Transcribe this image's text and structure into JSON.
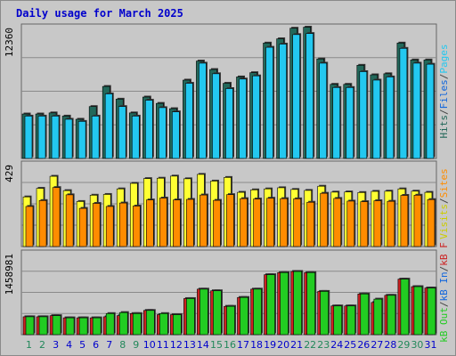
{
  "title": "Daily usage for March 2025",
  "colors": {
    "title": "#0000cc",
    "background": "#c8c8c8",
    "plot_bg": "#c8c8c8",
    "grid": "#8a8a8a",
    "hits": "#22685a",
    "files": "#23c8f0",
    "pages": "#23c8f0",
    "visits": "#ffff33",
    "sites": "#ff8c00",
    "kb_in": "#cc2222",
    "kb_out": "#22cc22",
    "weekday_label": "#0000cc",
    "weekend_label": "#22885a"
  },
  "right_labels": {
    "top": [
      {
        "text": "Hits",
        "color": "#22685a"
      },
      {
        "text": "/",
        "color": "#444444"
      },
      {
        "text": "Files",
        "color": "#1166dd"
      },
      {
        "text": "/",
        "color": "#444444"
      },
      {
        "text": "Pages",
        "color": "#23c8f0"
      }
    ],
    "middle": [
      {
        "text": "Visits",
        "color": "#cccc00"
      },
      {
        "text": "/",
        "color": "#444444"
      },
      {
        "text": "Sites",
        "color": "#ff8c00"
      }
    ],
    "bottom": [
      {
        "text": "kB Out",
        "color": "#22cc22"
      },
      {
        "text": "/",
        "color": "#444444"
      },
      {
        "text": "kB In",
        "color": "#1166dd"
      },
      {
        "text": "/",
        "color": "#444444"
      },
      {
        "text": "kB F",
        "color": "#cc2222"
      }
    ]
  },
  "chart_data": [
    {
      "type": "bar",
      "name": "hits-files-pages",
      "ymax": 12360,
      "ymax_label": "12360",
      "categories": [
        "1",
        "2",
        "3",
        "4",
        "5",
        "6",
        "7",
        "8",
        "9",
        "10",
        "11",
        "12",
        "13",
        "14",
        "15",
        "16",
        "17",
        "18",
        "19",
        "20",
        "21",
        "22",
        "23",
        "24",
        "25",
        "26",
        "27",
        "28",
        "29",
        "30",
        "31"
      ],
      "series": [
        {
          "name": "Hits",
          "values": [
            4200,
            4200,
            4300,
            4000,
            3700,
            4900,
            6800,
            5600,
            4300,
            5800,
            5200,
            4700,
            7400,
            9200,
            8400,
            7100,
            7700,
            8100,
            10900,
            11300,
            12300,
            12400,
            9400,
            7000,
            7000,
            8800,
            7900,
            8000,
            10900,
            9300,
            9300
          ]
        },
        {
          "name": "Files",
          "values": [
            4000,
            4000,
            4000,
            3700,
            3500,
            4000,
            6100,
            4900,
            4000,
            5500,
            4800,
            4400,
            7100,
            9000,
            8000,
            6600,
            7500,
            7800,
            10500,
            10800,
            11700,
            11800,
            9000,
            6700,
            6700,
            8200,
            7400,
            7700,
            10400,
            9000,
            8900
          ]
        },
        {
          "name": "Pages",
          "values": [
            0,
            0,
            0,
            0,
            0,
            0,
            0,
            0,
            0,
            0,
            0,
            0,
            0,
            0,
            0,
            0,
            0,
            0,
            0,
            0,
            0,
            0,
            0,
            0,
            0,
            0,
            0,
            0,
            0,
            0,
            0
          ]
        }
      ]
    },
    {
      "type": "bar",
      "name": "visits-sites",
      "ymax": 429,
      "ymax_label": "429",
      "categories": [
        "1",
        "2",
        "3",
        "4",
        "5",
        "6",
        "7",
        "8",
        "9",
        "10",
        "11",
        "12",
        "13",
        "14",
        "15",
        "16",
        "17",
        "18",
        "19",
        "20",
        "21",
        "22",
        "23",
        "24",
        "25",
        "26",
        "27",
        "28",
        "29",
        "30",
        "31"
      ],
      "series": [
        {
          "name": "Visits",
          "values": [
            260,
            305,
            368,
            293,
            236,
            269,
            273,
            302,
            331,
            356,
            358,
            369,
            355,
            378,
            343,
            362,
            284,
            297,
            302,
            308,
            299,
            294,
            316,
            285,
            286,
            283,
            289,
            290,
            302,
            290,
            284
          ]
        },
        {
          "name": "Sites",
          "values": [
            210,
            241,
            309,
            271,
            200,
            226,
            210,
            228,
            212,
            244,
            254,
            244,
            247,
            270,
            242,
            272,
            251,
            249,
            253,
            251,
            250,
            232,
            279,
            252,
            238,
            235,
            240,
            237,
            268,
            269,
            246
          ]
        }
      ]
    },
    {
      "type": "bar",
      "name": "kb-in-out",
      "ymax": 1458981,
      "ymax_label": "1458981",
      "categories": [
        "1",
        "2",
        "3",
        "4",
        "5",
        "6",
        "7",
        "8",
        "9",
        "10",
        "11",
        "12",
        "13",
        "14",
        "15",
        "16",
        "17",
        "18",
        "19",
        "20",
        "21",
        "22",
        "23",
        "24",
        "25",
        "26",
        "27",
        "28",
        "29",
        "30",
        "31"
      ],
      "series": [
        {
          "name": "kB F",
          "values": [
            322000,
            322000,
            342000,
            303000,
            303000,
            303000,
            322000,
            342000,
            380000,
            436000,
            360000,
            360000,
            650000,
            820000,
            790000,
            510000,
            670000,
            820000,
            1080000,
            1118000,
            1138000,
            1118000,
            779000,
            517000,
            517000,
            733000,
            580000,
            708000,
            1000000,
            865000,
            840000
          ]
        },
        {
          "name": "kB In",
          "values": [
            322000,
            322000,
            342000,
            303000,
            303000,
            303000,
            380000,
            398000,
            380000,
            436000,
            380000,
            360000,
            650000,
            820000,
            790000,
            510000,
            670000,
            820000,
            1080000,
            1118000,
            1138000,
            1118000,
            779000,
            517000,
            517000,
            733000,
            640000,
            708000,
            1000000,
            865000,
            840000
          ]
        },
        {
          "name": "kB Out",
          "values": [
            0,
            0,
            0,
            0,
            0,
            0,
            0,
            0,
            0,
            0,
            0,
            0,
            0,
            0,
            0,
            0,
            0,
            0,
            0,
            0,
            0,
            0,
            0,
            0,
            0,
            0,
            0,
            0,
            0,
            0,
            0
          ]
        }
      ]
    }
  ],
  "weekend_days": [
    "1",
    "2",
    "8",
    "9",
    "15",
    "16",
    "22",
    "23",
    "29",
    "30"
  ]
}
